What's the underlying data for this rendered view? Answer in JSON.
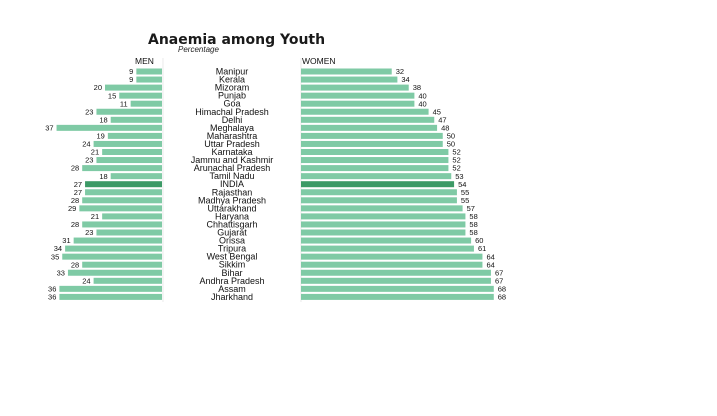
{
  "chart_data": {
    "type": "bar",
    "title": "Anaemia among Youth",
    "subtitle": "Percentage",
    "colors": {
      "bar": "#7fcaa5",
      "highlight": "#3c9a66"
    },
    "highlight_category": "INDIA",
    "categories": [
      "Manipur",
      "Kerala",
      "Mizoram",
      "Punjab",
      "Goa",
      "Himachal Pradesh",
      "Delhi",
      "Meghalaya",
      "Maharashtra",
      "Uttar Pradesh",
      "Karnataka",
      "Jammu and Kashmir",
      "Arunachal Pradesh",
      "Tamil Nadu",
      "INDIA",
      "Rajasthan",
      "Madhya Pradesh",
      "Uttarakhand",
      "Haryana",
      "Chhattisgarh",
      "Gujarat",
      "Orissa",
      "Tripura",
      "West Bengal",
      "Sikkim",
      "Bihar",
      "Andhra Pradesh",
      "Assam",
      "Jharkhand"
    ],
    "series": [
      {
        "name": "MEN",
        "values": [
          9,
          9,
          20,
          15,
          11,
          23,
          18,
          37,
          19,
          24,
          21,
          23,
          28,
          18,
          27,
          27,
          28,
          29,
          21,
          28,
          23,
          31,
          34,
          35,
          28,
          33,
          24,
          36,
          36
        ]
      },
      {
        "name": "WOMEN",
        "values": [
          32,
          34,
          38,
          40,
          40,
          45,
          47,
          48,
          50,
          50,
          52,
          52,
          52,
          53,
          54,
          55,
          55,
          57,
          58,
          58,
          58,
          60,
          61,
          64,
          64,
          67,
          67,
          68,
          68
        ]
      }
    ]
  }
}
